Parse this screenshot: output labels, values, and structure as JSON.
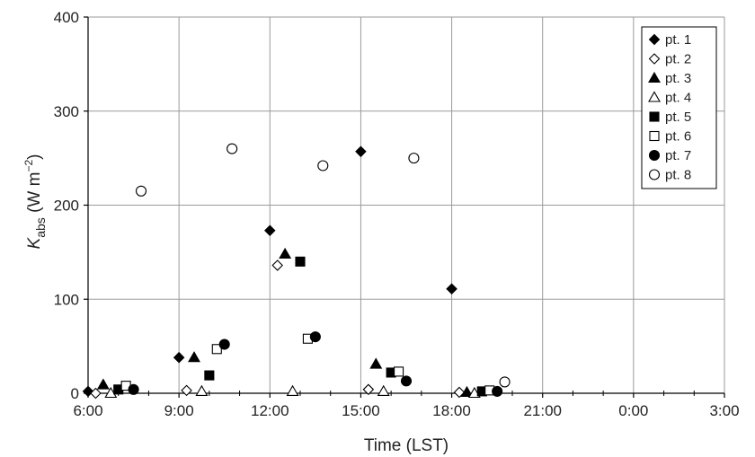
{
  "chart_data": {
    "type": "scatter",
    "title": "",
    "xlabel": "Time   (LST)",
    "ylabel": {
      "main": "K",
      "sub": "abs",
      "unit_pre": " (W m",
      "unit_sup": "−2",
      "unit_post": ")"
    },
    "x_range_hours": [
      6,
      27
    ],
    "x_tick_hours": [
      6,
      9,
      12,
      15,
      18,
      21,
      24,
      27
    ],
    "x_tick_labels": [
      "6:00",
      "9:00",
      "12:00",
      "15:00",
      "18:00",
      "21:00",
      "0:00",
      "3:00"
    ],
    "ylim": [
      0,
      400
    ],
    "y_ticks": [
      0,
      100,
      200,
      300,
      400
    ],
    "y_tick_labels": [
      "0",
      "100",
      "200",
      "300",
      "400"
    ],
    "grid": true,
    "legend_position": "top-right",
    "series": [
      {
        "name": "pt. 1",
        "marker": "diamond-filled",
        "points": [
          [
            6.0,
            2
          ],
          [
            9.0,
            38
          ],
          [
            12.0,
            173
          ],
          [
            15.0,
            257
          ],
          [
            18.0,
            111
          ]
        ]
      },
      {
        "name": "pt. 2",
        "marker": "diamond-open",
        "points": [
          [
            6.25,
            0
          ],
          [
            9.25,
            3
          ],
          [
            12.25,
            136
          ],
          [
            15.25,
            4
          ],
          [
            18.25,
            1
          ]
        ]
      },
      {
        "name": "pt. 3",
        "marker": "triangle-filled",
        "points": [
          [
            6.5,
            9
          ],
          [
            9.5,
            38
          ],
          [
            12.5,
            148
          ],
          [
            15.5,
            31
          ],
          [
            18.5,
            1
          ]
        ]
      },
      {
        "name": "pt. 4",
        "marker": "triangle-open",
        "points": [
          [
            6.75,
            0
          ],
          [
            9.75,
            2
          ],
          [
            12.75,
            2
          ],
          [
            15.75,
            2
          ],
          [
            18.75,
            0
          ]
        ]
      },
      {
        "name": "pt. 5",
        "marker": "square-filled",
        "points": [
          [
            7.0,
            4
          ],
          [
            10.0,
            19
          ],
          [
            13.0,
            140
          ],
          [
            16.0,
            22
          ],
          [
            19.0,
            2
          ]
        ]
      },
      {
        "name": "pt. 6",
        "marker": "square-open",
        "points": [
          [
            7.25,
            8
          ],
          [
            10.25,
            47
          ],
          [
            13.25,
            58
          ],
          [
            16.25,
            23
          ],
          [
            19.25,
            3
          ]
        ]
      },
      {
        "name": "pt. 7",
        "marker": "circle-filled",
        "points": [
          [
            7.5,
            4
          ],
          [
            10.5,
            52
          ],
          [
            13.5,
            60
          ],
          [
            16.5,
            13
          ],
          [
            19.5,
            2
          ]
        ]
      },
      {
        "name": "pt. 8",
        "marker": "circle-open",
        "points": [
          [
            7.75,
            215
          ],
          [
            10.75,
            260
          ],
          [
            13.75,
            242
          ],
          [
            16.75,
            250
          ],
          [
            19.75,
            12
          ]
        ]
      }
    ]
  }
}
